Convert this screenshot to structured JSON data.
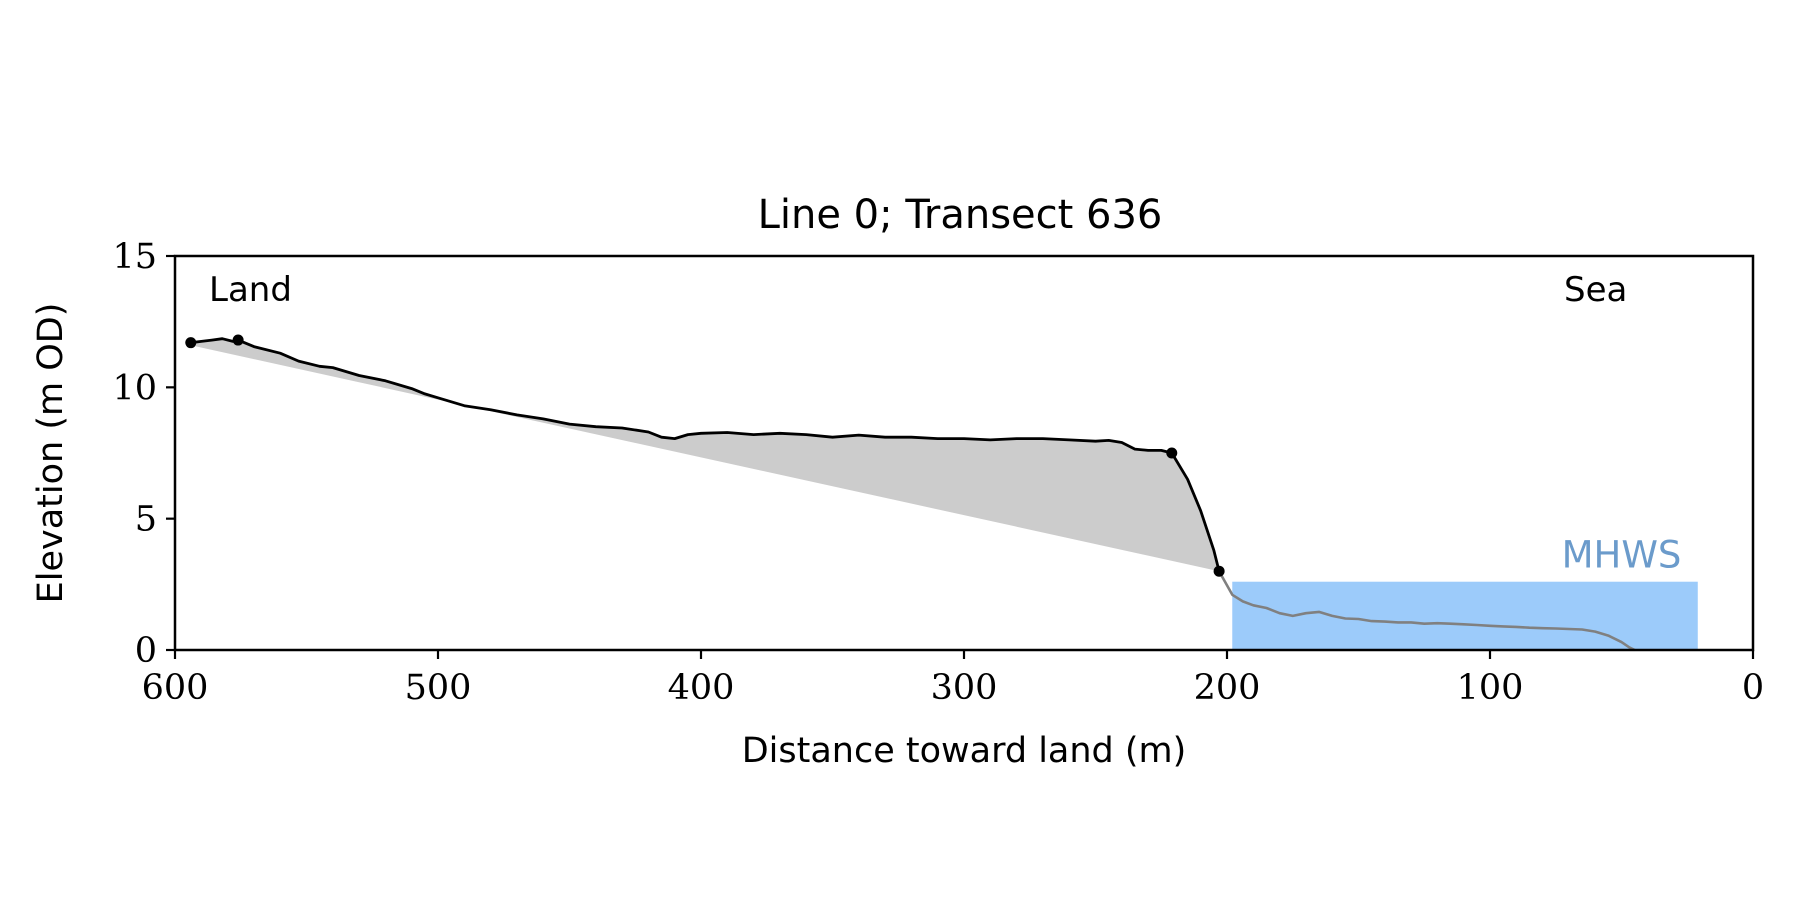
{
  "chart_data": {
    "type": "line",
    "title": "Line 0; Transect 636",
    "xlabel": "Distance toward land (m)",
    "ylabel": "Elevation (m OD)",
    "xlim": [
      600,
      0
    ],
    "ylim": [
      0,
      15
    ],
    "x_reversed": true,
    "grid": false,
    "xticks": [
      600,
      500,
      400,
      300,
      200,
      100,
      0
    ],
    "yticks": [
      0,
      5,
      10,
      15
    ],
    "annotations": {
      "land_label": "Land",
      "sea_label": "Sea",
      "mhws_label": "MHWS"
    },
    "mhws": {
      "elevation": 2.6,
      "x_from": 198,
      "x_to": 21
    },
    "colors": {
      "profile": "#000000",
      "seaward_profile": "#808080",
      "fill": "#cccccc",
      "mhws_fill": "#9ccbfa",
      "mhws_text": "#6b9bcb"
    },
    "profile": [
      [
        594,
        11.7
      ],
      [
        590,
        11.75
      ],
      [
        586,
        11.8
      ],
      [
        582,
        11.85
      ],
      [
        578,
        11.75
      ],
      [
        576,
        11.8
      ],
      [
        570,
        11.55
      ],
      [
        560,
        11.3
      ],
      [
        553,
        11.0
      ],
      [
        545,
        10.8
      ],
      [
        540,
        10.75
      ],
      [
        530,
        10.45
      ],
      [
        520,
        10.25
      ],
      [
        510,
        9.95
      ],
      [
        505,
        9.75
      ],
      [
        500,
        9.6
      ],
      [
        490,
        9.3
      ],
      [
        480,
        9.15
      ],
      [
        470,
        8.95
      ],
      [
        460,
        8.8
      ],
      [
        450,
        8.6
      ],
      [
        440,
        8.5
      ],
      [
        430,
        8.45
      ],
      [
        420,
        8.3
      ],
      [
        415,
        8.1
      ],
      [
        410,
        8.05
      ],
      [
        405,
        8.2
      ],
      [
        400,
        8.25
      ],
      [
        390,
        8.28
      ],
      [
        380,
        8.2
      ],
      [
        370,
        8.25
      ],
      [
        360,
        8.2
      ],
      [
        350,
        8.1
      ],
      [
        340,
        8.18
      ],
      [
        330,
        8.1
      ],
      [
        320,
        8.1
      ],
      [
        310,
        8.05
      ],
      [
        300,
        8.05
      ],
      [
        290,
        8.0
      ],
      [
        280,
        8.05
      ],
      [
        270,
        8.05
      ],
      [
        260,
        8.0
      ],
      [
        250,
        7.95
      ],
      [
        245,
        7.98
      ],
      [
        240,
        7.9
      ],
      [
        235,
        7.65
      ],
      [
        230,
        7.6
      ],
      [
        225,
        7.6
      ],
      [
        221,
        7.5
      ],
      [
        215,
        6.5
      ],
      [
        210,
        5.3
      ],
      [
        205,
        3.8
      ],
      [
        203,
        3.0
      ]
    ],
    "seaward_profile": [
      [
        203,
        3.0
      ],
      [
        198,
        2.1
      ],
      [
        194,
        1.85
      ],
      [
        190,
        1.7
      ],
      [
        185,
        1.6
      ],
      [
        180,
        1.4
      ],
      [
        175,
        1.3
      ],
      [
        170,
        1.4
      ],
      [
        165,
        1.45
      ],
      [
        160,
        1.3
      ],
      [
        155,
        1.2
      ],
      [
        150,
        1.18
      ],
      [
        145,
        1.1
      ],
      [
        140,
        1.08
      ],
      [
        135,
        1.05
      ],
      [
        130,
        1.05
      ],
      [
        125,
        1.0
      ],
      [
        120,
        1.02
      ],
      [
        115,
        1.0
      ],
      [
        110,
        0.98
      ],
      [
        105,
        0.95
      ],
      [
        100,
        0.92
      ],
      [
        95,
        0.9
      ],
      [
        90,
        0.88
      ],
      [
        85,
        0.85
      ],
      [
        80,
        0.83
      ],
      [
        75,
        0.82
      ],
      [
        70,
        0.8
      ],
      [
        65,
        0.78
      ],
      [
        60,
        0.7
      ],
      [
        55,
        0.55
      ],
      [
        50,
        0.3
      ],
      [
        47,
        0.1
      ],
      [
        45,
        0.0
      ]
    ],
    "baseline": [
      [
        594,
        11.6
      ],
      [
        203,
        3.0
      ]
    ],
    "marker_points": [
      [
        594,
        11.7
      ],
      [
        576,
        11.8
      ],
      [
        221,
        7.5
      ],
      [
        203,
        3.0
      ]
    ]
  }
}
